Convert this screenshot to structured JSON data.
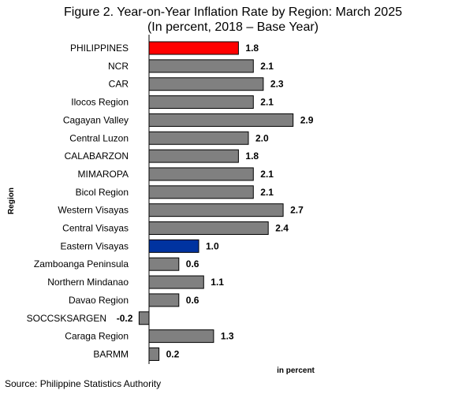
{
  "title_line1": "Figure 2. Year-on-Year Inflation Rate by Region: March 2025",
  "title_line2": "(In percent, 2018 – Base Year)",
  "source": "Source: Philippine Statistics Authority",
  "chart_data": {
    "type": "bar",
    "orientation": "horizontal",
    "title": "Figure 2. Year-on-Year Inflation Rate by Region: March 2025",
    "subtitle": "(In percent, 2018 – Base Year)",
    "xlabel": "in percent",
    "ylabel": "Region",
    "xlim": [
      -0.2,
      2.9
    ],
    "grid": false,
    "categories": [
      "PHILIPPINES",
      "NCR",
      "CAR",
      "Ilocos Region",
      "Cagayan Valley",
      "Central Luzon",
      "CALABARZON",
      "MIMAROPA",
      "Bicol Region",
      "Western Visayas",
      "Central Visayas",
      "Eastern Visayas",
      "Zamboanga Peninsula",
      "Northern Mindanao",
      "Davao Region",
      "SOCCSKSARGEN",
      "Caraga Region",
      "BARMM"
    ],
    "values": [
      1.8,
      2.1,
      2.3,
      2.1,
      2.9,
      2.0,
      1.8,
      2.1,
      2.1,
      2.7,
      2.4,
      1.0,
      0.6,
      1.1,
      0.6,
      -0.2,
      1.3,
      0.2
    ],
    "value_labels": [
      "1.8",
      "2.1",
      "2.3",
      "2.1",
      "2.9",
      "2.0",
      "1.8",
      "2.1",
      "2.1",
      "2.7",
      "2.4",
      "1.0",
      "0.6",
      "1.1",
      "0.6",
      "-0.2",
      "1.3",
      "0.2"
    ],
    "colors": {
      "default": "#808080",
      "highlight_philippines": "#ff0000",
      "highlight_eastern_visayas": "#0033a0",
      "bar_edge": "#000000"
    },
    "bar_colors": [
      "#ff0000",
      "#808080",
      "#808080",
      "#808080",
      "#808080",
      "#808080",
      "#808080",
      "#808080",
      "#808080",
      "#808080",
      "#808080",
      "#0033a0",
      "#808080",
      "#808080",
      "#808080",
      "#808080",
      "#808080",
      "#808080"
    ]
  }
}
